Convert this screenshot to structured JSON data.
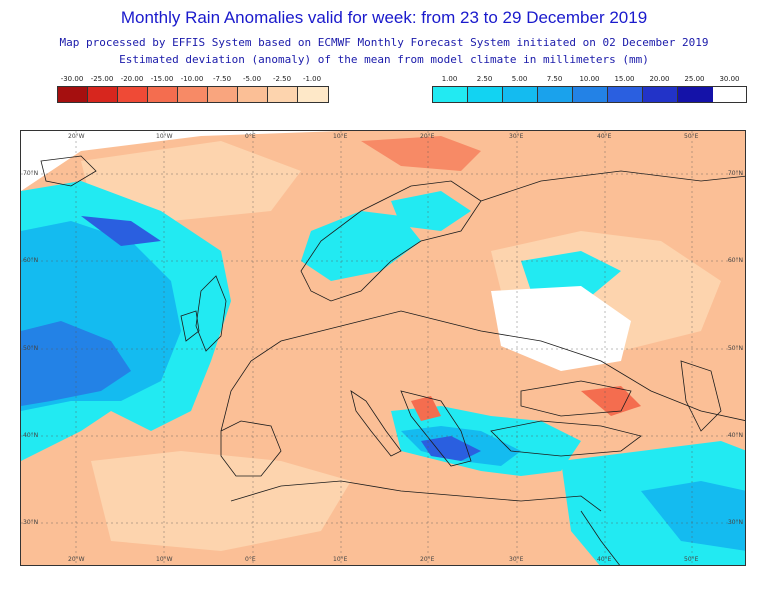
{
  "title": "Monthly Rain Anomalies valid for week: from 23 to 29 December 2019",
  "subtitle_1": "Map processed by EFFIS System based on ECMWF Monthly Forecast System initiated on 02 December 2019",
  "subtitle_2": "Estimated deviation (anomaly) of the mean from model climate in millimeters (mm)",
  "legend_negative": {
    "labels": [
      "-30.00",
      "-25.00",
      "-20.00",
      "-15.00",
      "-10.00",
      "-7.50",
      "-5.00",
      "-2.50",
      "-1.00"
    ],
    "colors": [
      "#a50f0f",
      "#d7261e",
      "#ef4a36",
      "#f46d4f",
      "#f78a66",
      "#f9a57e",
      "#fbbf96",
      "#fdd4ae",
      "#fee8c8"
    ]
  },
  "legend_positive": {
    "labels": [
      "1.00",
      "2.50",
      "5.00",
      "7.50",
      "10.00",
      "15.00",
      "20.00",
      "25.00",
      "30.00"
    ],
    "colors": [
      "#22eaf2",
      "#12d3f2",
      "#14bbf0",
      "#1aa2ec",
      "#2382e6",
      "#2a5fe0",
      "#2233c8",
      "#1412a8"
    ]
  },
  "map": {
    "neutral_color": "#ffffff",
    "coast_color": "#1c1c1c",
    "lon_labels": [
      "20°W",
      "10°W",
      "0°E",
      "10°E",
      "20°E",
      "30°E",
      "40°E",
      "50°E"
    ],
    "lat_labels": [
      "70°N",
      "60°N",
      "50°N",
      "40°N",
      "30°N"
    ]
  }
}
